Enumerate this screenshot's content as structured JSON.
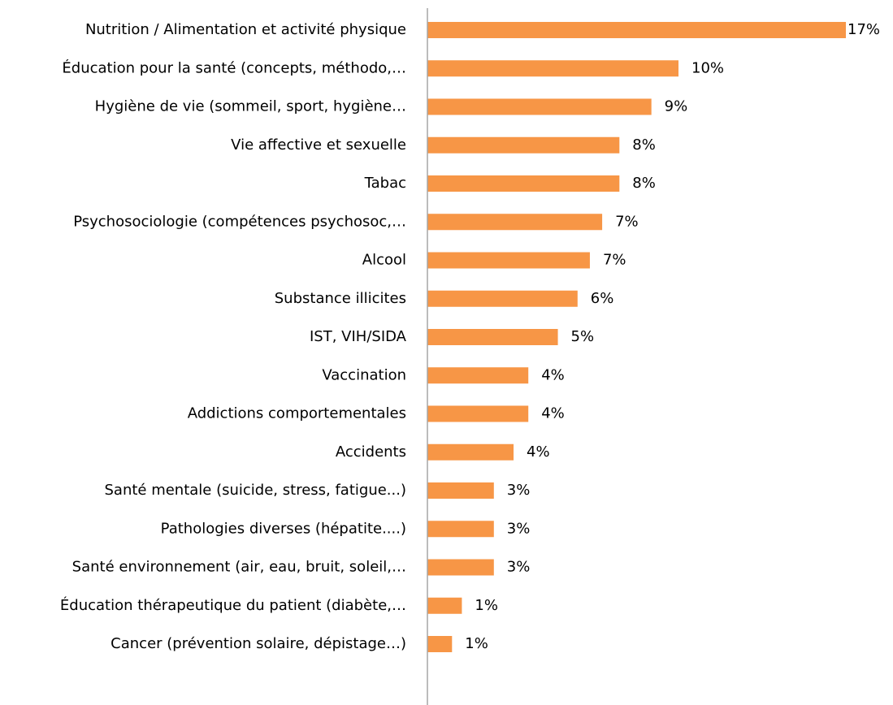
{
  "chart_data": {
    "type": "barh",
    "categories": [
      "Nutrition / Alimentation et activité physique",
      "Éducation pour la santé (concepts, méthodo,…",
      "Hygiène de vie (sommeil, sport, hygiène…",
      "Vie affective et sexuelle",
      "Tabac",
      "Psychosociologie (compétences psychosoc,…",
      "Alcool",
      "Substance illicites",
      "IST, VIH/SIDA",
      "Vaccination",
      "Addictions comportementales",
      "Accidents",
      "Santé mentale (suicide, stress, fatigue...)",
      "Pathologies diverses (hépatite....)",
      "Santé environnement (air, eau, bruit, soleil,…",
      "Éducation thérapeutique du patient (diabète,…",
      "Cancer (prévention solaire, dépistage…)"
    ],
    "values": [
      17,
      10.2,
      9.1,
      7.8,
      7.8,
      7.1,
      6.6,
      6.1,
      5.3,
      4.1,
      4.1,
      3.5,
      2.7,
      2.7,
      2.7,
      1.4,
      1.0
    ],
    "value_labels": [
      "17%",
      "10%",
      "9%",
      "8%",
      "8%",
      "7%",
      "7%",
      "6%",
      "5%",
      "4%",
      "4%",
      "4%",
      "3%",
      "3%",
      "3%",
      "1%",
      "1%"
    ],
    "color": "#f79646",
    "xlim": [
      0,
      17
    ]
  }
}
